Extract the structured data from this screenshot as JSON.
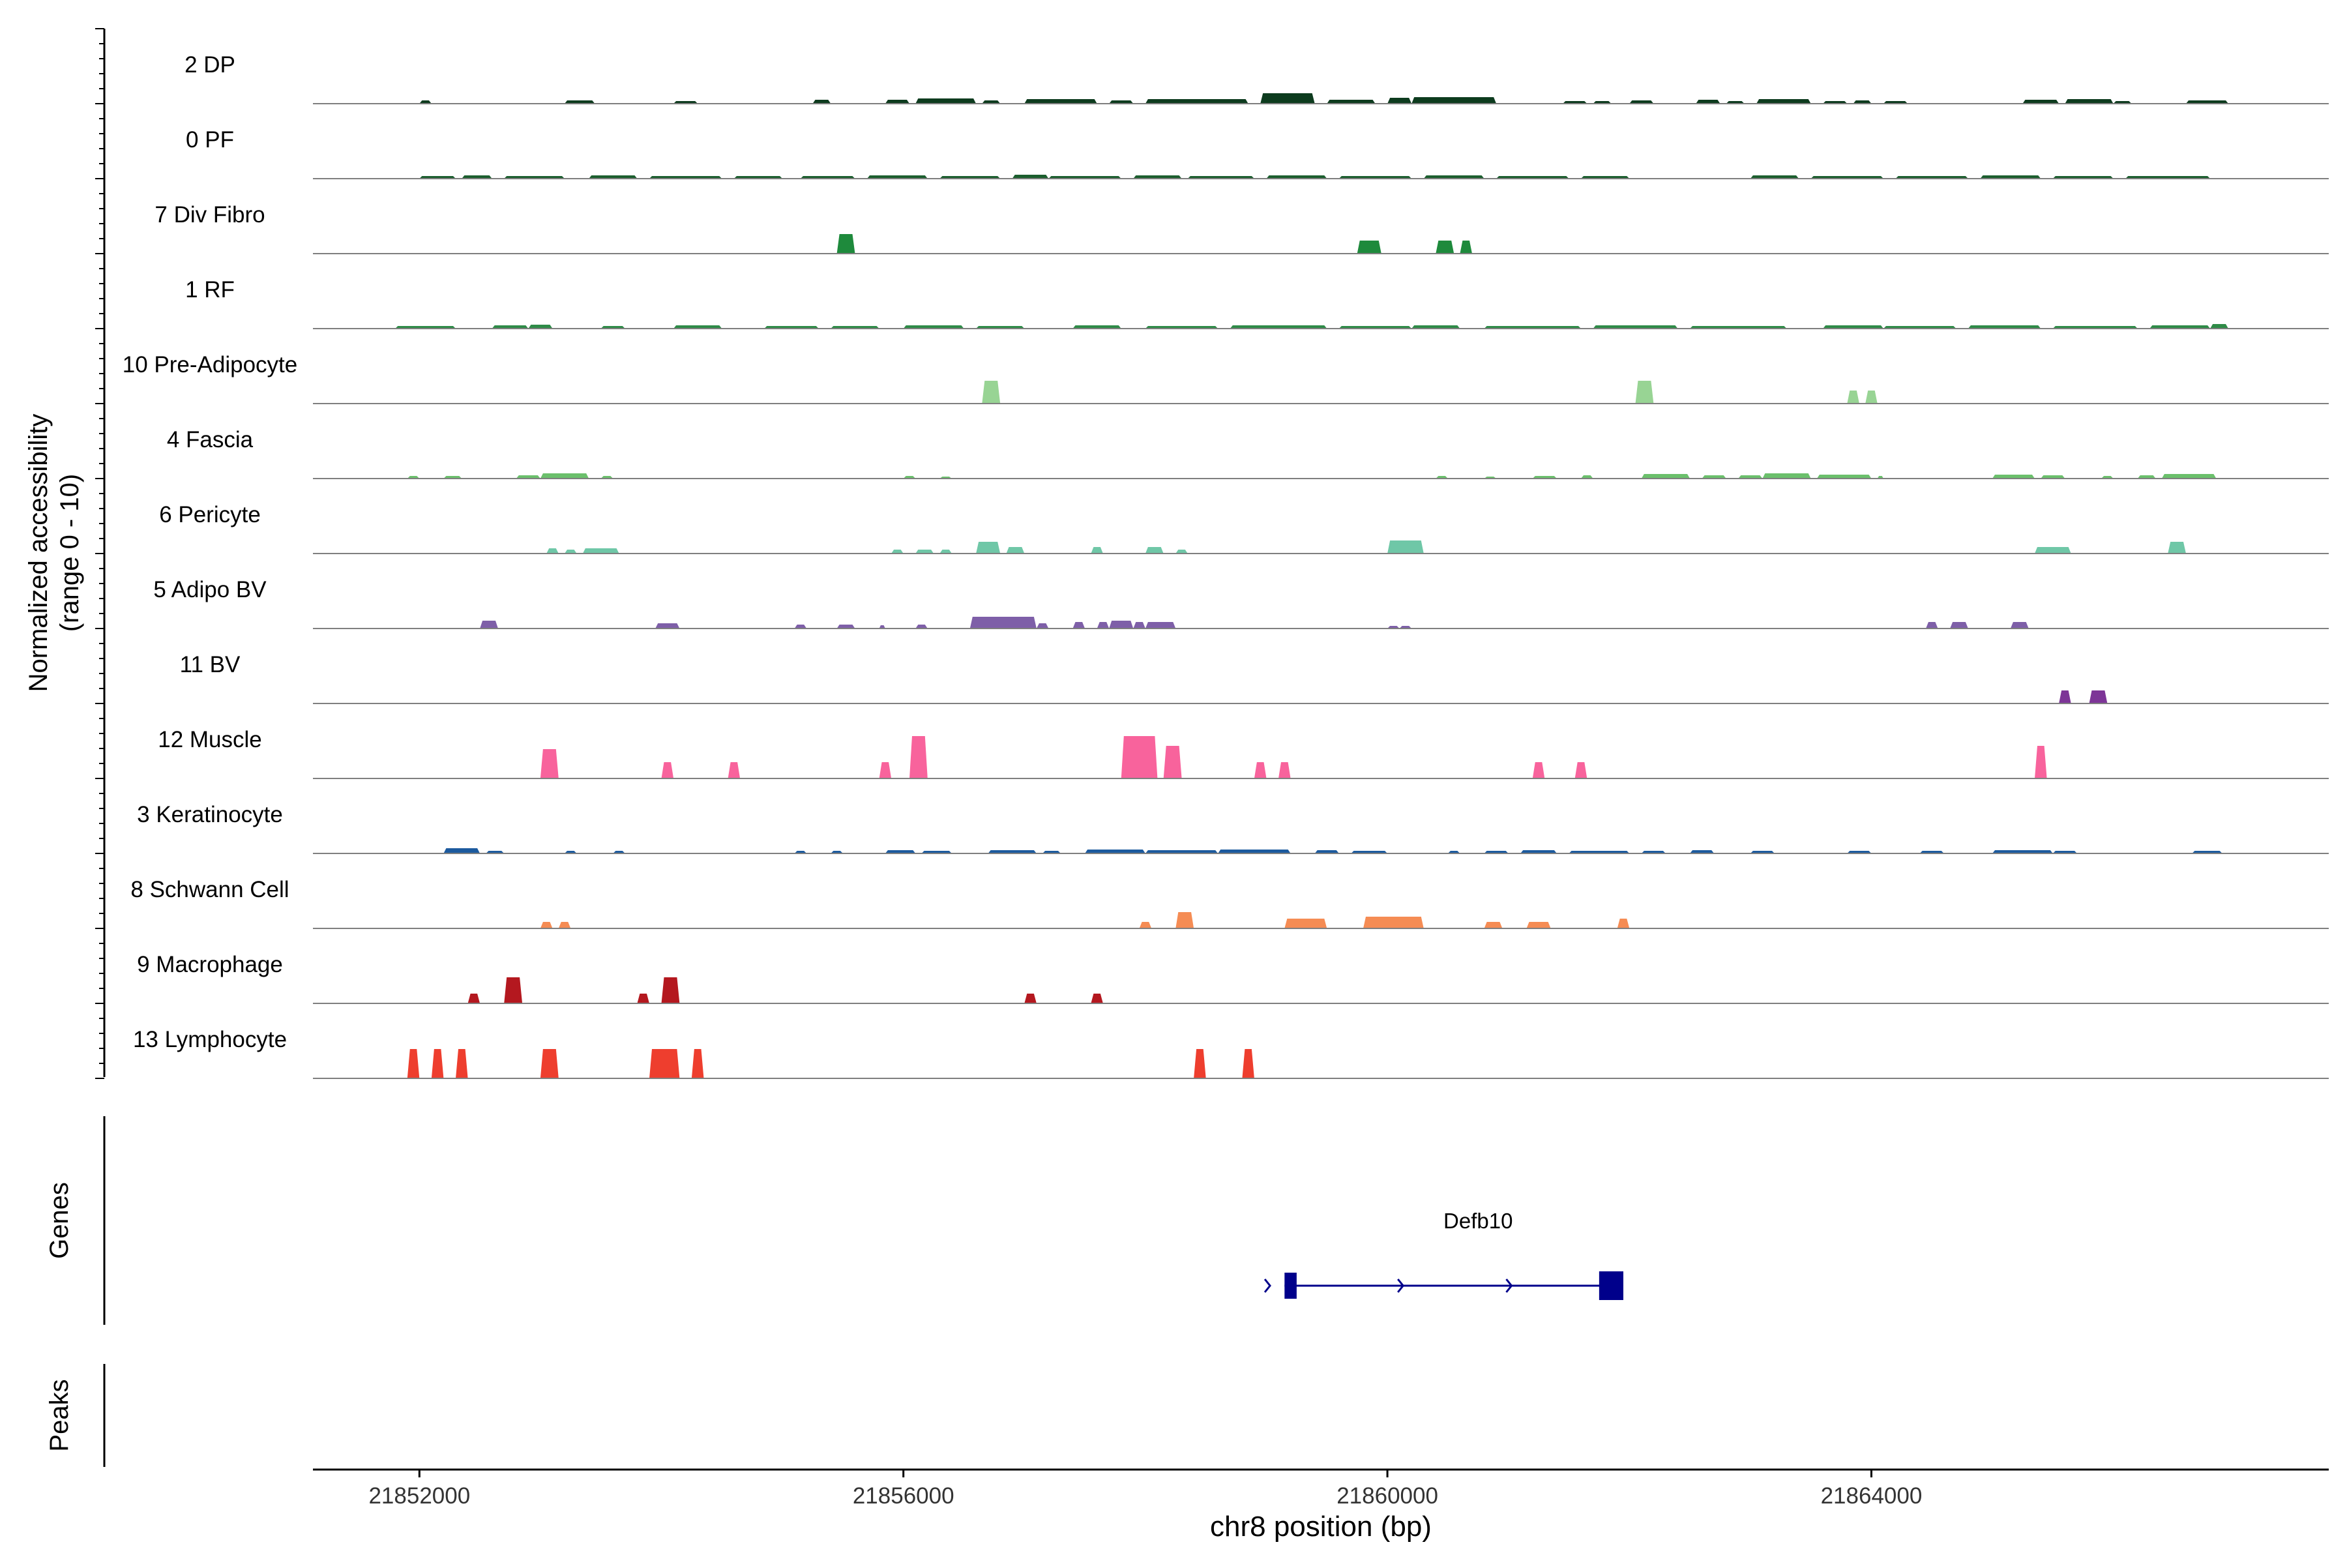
{
  "chart_data": {
    "type": "area",
    "title": "",
    "y_axis_label": "Normalized accessibility",
    "y_axis_sublabel": "(range 0 - 10)",
    "ylim": [
      0,
      10
    ],
    "genes_label": "Genes",
    "peaks_label": "Peaks",
    "xlabel": "chr8 position (bp)",
    "xlim": [
      21851120,
      21867780
    ],
    "xticks": [
      21852000,
      21856000,
      21860000,
      21864000
    ],
    "xtick_labels": [
      "21852000",
      "21856000",
      "21860000",
      "21864000"
    ],
    "gene": {
      "name": "Defb10",
      "start": 21859150,
      "end": 21861950,
      "strand": "+",
      "exons": [
        [
          21859150,
          21859250
        ],
        [
          21861750,
          21861950
        ]
      ],
      "color": "#00008b"
    },
    "tracks": [
      {
        "name": "2 DP",
        "color": "#0d3b1e",
        "segments": [
          [
            21852000,
            21852100,
            0.5
          ],
          [
            21853200,
            21853450,
            0.5
          ],
          [
            21854100,
            21854300,
            0.4
          ],
          [
            21855250,
            21855400,
            0.6
          ],
          [
            21855850,
            21856050,
            0.6
          ],
          [
            21856100,
            21856600,
            0.8
          ],
          [
            21856650,
            21856800,
            0.5
          ],
          [
            21857000,
            21857600,
            0.7
          ],
          [
            21857700,
            21857900,
            0.5
          ],
          [
            21858000,
            21858850,
            0.7
          ],
          [
            21858950,
            21859400,
            1.6
          ],
          [
            21859500,
            21859900,
            0.6
          ],
          [
            21860000,
            21860200,
            0.9
          ],
          [
            21860200,
            21860900,
            1.0
          ],
          [
            21861450,
            21861650,
            0.4
          ],
          [
            21861700,
            21861850,
            0.4
          ],
          [
            21862000,
            21862200,
            0.5
          ],
          [
            21862550,
            21862750,
            0.6
          ],
          [
            21862800,
            21862950,
            0.4
          ],
          [
            21863050,
            21863500,
            0.7
          ],
          [
            21863600,
            21863800,
            0.4
          ],
          [
            21863850,
            21864000,
            0.5
          ],
          [
            21864100,
            21864300,
            0.4
          ],
          [
            21865250,
            21865550,
            0.6
          ],
          [
            21865600,
            21866000,
            0.7
          ],
          [
            21866000,
            21866150,
            0.4
          ],
          [
            21866600,
            21866950,
            0.5
          ]
        ]
      },
      {
        "name": "0 PF",
        "color": "#1b5e2e",
        "segments": [
          [
            21852000,
            21852300,
            0.4
          ],
          [
            21852350,
            21852600,
            0.5
          ],
          [
            21852700,
            21853200,
            0.4
          ],
          [
            21853400,
            21853800,
            0.5
          ],
          [
            21853900,
            21854500,
            0.4
          ],
          [
            21854600,
            21855000,
            0.4
          ],
          [
            21855150,
            21855600,
            0.4
          ],
          [
            21855700,
            21856200,
            0.5
          ],
          [
            21856300,
            21856800,
            0.4
          ],
          [
            21856900,
            21857200,
            0.6
          ],
          [
            21857200,
            21857800,
            0.4
          ],
          [
            21857900,
            21858300,
            0.5
          ],
          [
            21858350,
            21858900,
            0.4
          ],
          [
            21859000,
            21859500,
            0.5
          ],
          [
            21859600,
            21860200,
            0.4
          ],
          [
            21860300,
            21860800,
            0.5
          ],
          [
            21860900,
            21861500,
            0.4
          ],
          [
            21861600,
            21862000,
            0.4
          ],
          [
            21863000,
            21863400,
            0.5
          ],
          [
            21863500,
            21864100,
            0.4
          ],
          [
            21864200,
            21864800,
            0.4
          ],
          [
            21864900,
            21865400,
            0.5
          ],
          [
            21865500,
            21866000,
            0.4
          ],
          [
            21866100,
            21866800,
            0.4
          ]
        ]
      },
      {
        "name": "7 Div Fibro",
        "color": "#1e8a3c",
        "segments": [
          [
            21855450,
            21855600,
            3.0
          ],
          [
            21859750,
            21859950,
            2.0
          ],
          [
            21860400,
            21860550,
            2.0
          ],
          [
            21860600,
            21860700,
            2.0
          ]
        ]
      },
      {
        "name": "1 RF",
        "color": "#2e8b47",
        "segments": [
          [
            21851800,
            21852300,
            0.4
          ],
          [
            21852600,
            21852900,
            0.5
          ],
          [
            21852900,
            21853100,
            0.6
          ],
          [
            21853500,
            21853700,
            0.4
          ],
          [
            21854100,
            21854500,
            0.5
          ],
          [
            21854850,
            21855300,
            0.4
          ],
          [
            21855400,
            21855800,
            0.4
          ],
          [
            21856000,
            21856500,
            0.5
          ],
          [
            21856600,
            21857000,
            0.4
          ],
          [
            21857400,
            21857800,
            0.5
          ],
          [
            21858000,
            21858600,
            0.4
          ],
          [
            21858700,
            21859500,
            0.5
          ],
          [
            21859600,
            21860200,
            0.4
          ],
          [
            21860200,
            21860600,
            0.5
          ],
          [
            21860800,
            21861600,
            0.4
          ],
          [
            21861700,
            21862400,
            0.5
          ],
          [
            21862500,
            21863300,
            0.4
          ],
          [
            21863600,
            21864100,
            0.5
          ],
          [
            21864100,
            21864700,
            0.4
          ],
          [
            21864800,
            21865400,
            0.5
          ],
          [
            21865500,
            21866200,
            0.4
          ],
          [
            21866300,
            21866800,
            0.5
          ],
          [
            21866800,
            21866950,
            0.7
          ]
        ]
      },
      {
        "name": "10 Pre-Adipocyte",
        "color": "#98d494",
        "segments": [
          [
            21856650,
            21856800,
            3.5
          ],
          [
            21862050,
            21862200,
            3.5
          ],
          [
            21863800,
            21863900,
            2.0
          ],
          [
            21863950,
            21864050,
            2.0
          ]
        ]
      },
      {
        "name": "4 Fascia",
        "color": "#6bc06c",
        "segments": [
          [
            21851900,
            21852000,
            0.4
          ],
          [
            21852200,
            21852350,
            0.4
          ],
          [
            21852800,
            21853000,
            0.5
          ],
          [
            21853000,
            21853400,
            0.8
          ],
          [
            21853500,
            21853600,
            0.4
          ],
          [
            21856000,
            21856100,
            0.4
          ],
          [
            21856300,
            21856400,
            0.3
          ],
          [
            21860400,
            21860500,
            0.4
          ],
          [
            21860800,
            21860900,
            0.3
          ],
          [
            21861200,
            21861400,
            0.4
          ],
          [
            21861600,
            21861700,
            0.5
          ],
          [
            21862100,
            21862500,
            0.7
          ],
          [
            21862600,
            21862800,
            0.5
          ],
          [
            21862900,
            21863100,
            0.5
          ],
          [
            21863100,
            21863500,
            0.8
          ],
          [
            21863550,
            21864000,
            0.6
          ],
          [
            21864050,
            21864100,
            0.4
          ],
          [
            21865000,
            21865350,
            0.6
          ],
          [
            21865400,
            21865600,
            0.5
          ],
          [
            21865900,
            21866000,
            0.4
          ],
          [
            21866200,
            21866350,
            0.5
          ],
          [
            21866400,
            21866850,
            0.7
          ]
        ]
      },
      {
        "name": "6 Pericyte",
        "color": "#6fc7a7",
        "segments": [
          [
            21853050,
            21853150,
            0.8
          ],
          [
            21853200,
            21853300,
            0.6
          ],
          [
            21853350,
            21853650,
            0.8
          ],
          [
            21855900,
            21856000,
            0.6
          ],
          [
            21856100,
            21856250,
            0.6
          ],
          [
            21856300,
            21856400,
            0.6
          ],
          [
            21856600,
            21856800,
            1.8
          ],
          [
            21856850,
            21857000,
            1.0
          ],
          [
            21857550,
            21857650,
            1.0
          ],
          [
            21858000,
            21858150,
            1.0
          ],
          [
            21858250,
            21858350,
            0.6
          ],
          [
            21860000,
            21860300,
            2.0
          ],
          [
            21865350,
            21865650,
            1.0
          ],
          [
            21866450,
            21866600,
            1.8
          ]
        ]
      },
      {
        "name": "5 Adipo BV",
        "color": "#7e5fa8",
        "segments": [
          [
            21852500,
            21852650,
            1.2
          ],
          [
            21853950,
            21854150,
            0.8
          ],
          [
            21855100,
            21855200,
            0.6
          ],
          [
            21855450,
            21855600,
            0.6
          ],
          [
            21855800,
            21855850,
            0.5
          ],
          [
            21856100,
            21856200,
            0.6
          ],
          [
            21856550,
            21857100,
            1.8
          ],
          [
            21857100,
            21857200,
            0.8
          ],
          [
            21857400,
            21857500,
            1.0
          ],
          [
            21857600,
            21857700,
            1.0
          ],
          [
            21857700,
            21857900,
            1.2
          ],
          [
            21857900,
            21858000,
            1.0
          ],
          [
            21858000,
            21858250,
            1.0
          ],
          [
            21860000,
            21860100,
            0.4
          ],
          [
            21860100,
            21860200,
            0.4
          ],
          [
            21864450,
            21864550,
            1.0
          ],
          [
            21864650,
            21864800,
            1.0
          ],
          [
            21865150,
            21865300,
            1.0
          ]
        ]
      },
      {
        "name": "11 BV",
        "color": "#7d3597",
        "segments": [
          [
            21865550,
            21865650,
            2.0
          ],
          [
            21865800,
            21865950,
            2.0
          ]
        ]
      },
      {
        "name": "12 Muscle",
        "color": "#f8639c",
        "segments": [
          [
            21853000,
            21853150,
            4.5
          ],
          [
            21854000,
            21854100,
            2.5
          ],
          [
            21854550,
            21854650,
            2.5
          ],
          [
            21855800,
            21855900,
            2.5
          ],
          [
            21856050,
            21856200,
            6.5
          ],
          [
            21857800,
            21858100,
            6.5
          ],
          [
            21858150,
            21858300,
            5.0
          ],
          [
            21858900,
            21859000,
            2.5
          ],
          [
            21859100,
            21859200,
            2.5
          ],
          [
            21861200,
            21861300,
            2.5
          ],
          [
            21861550,
            21861650,
            2.5
          ],
          [
            21865350,
            21865450,
            5.0
          ]
        ]
      },
      {
        "name": "3 Keratinocyte",
        "color": "#1c5a9e",
        "segments": [
          [
            21852200,
            21852500,
            0.8
          ],
          [
            21852550,
            21852700,
            0.4
          ],
          [
            21853200,
            21853300,
            0.4
          ],
          [
            21853600,
            21853700,
            0.4
          ],
          [
            21855100,
            21855200,
            0.4
          ],
          [
            21855400,
            21855500,
            0.4
          ],
          [
            21855850,
            21856100,
            0.5
          ],
          [
            21856150,
            21856400,
            0.4
          ],
          [
            21856700,
            21857100,
            0.5
          ],
          [
            21857150,
            21857300,
            0.4
          ],
          [
            21857500,
            21858000,
            0.6
          ],
          [
            21858000,
            21858600,
            0.5
          ],
          [
            21858600,
            21859200,
            0.6
          ],
          [
            21859400,
            21859600,
            0.5
          ],
          [
            21859700,
            21860000,
            0.4
          ],
          [
            21860500,
            21860600,
            0.4
          ],
          [
            21860800,
            21861000,
            0.4
          ],
          [
            21861100,
            21861400,
            0.5
          ],
          [
            21861500,
            21862000,
            0.4
          ],
          [
            21862100,
            21862300,
            0.4
          ],
          [
            21862500,
            21862700,
            0.5
          ],
          [
            21863000,
            21863200,
            0.4
          ],
          [
            21863800,
            21864000,
            0.4
          ],
          [
            21864400,
            21864600,
            0.4
          ],
          [
            21865000,
            21865500,
            0.5
          ],
          [
            21865500,
            21865700,
            0.4
          ],
          [
            21866650,
            21866900,
            0.4
          ]
        ]
      },
      {
        "name": "8 Schwann Cell",
        "color": "#f58c54",
        "segments": [
          [
            21853000,
            21853100,
            1.0
          ],
          [
            21853150,
            21853250,
            1.0
          ],
          [
            21857950,
            21858050,
            1.0
          ],
          [
            21858250,
            21858400,
            2.5
          ],
          [
            21859150,
            21859500,
            1.5
          ],
          [
            21859800,
            21860300,
            1.8
          ],
          [
            21860800,
            21860950,
            1.0
          ],
          [
            21861150,
            21861350,
            1.0
          ],
          [
            21861900,
            21862000,
            1.5
          ]
        ]
      },
      {
        "name": "9 Macrophage",
        "color": "#b4181f",
        "segments": [
          [
            21852400,
            21852500,
            1.5
          ],
          [
            21852700,
            21852850,
            4.0
          ],
          [
            21853800,
            21853900,
            1.5
          ],
          [
            21854000,
            21854150,
            4.0
          ],
          [
            21857000,
            21857100,
            1.5
          ],
          [
            21857550,
            21857650,
            1.5
          ]
        ]
      },
      {
        "name": "13 Lymphocyte",
        "color": "#ee3e2e",
        "segments": [
          [
            21851900,
            21852000,
            4.5
          ],
          [
            21852100,
            21852200,
            4.5
          ],
          [
            21852300,
            21852400,
            4.5
          ],
          [
            21853000,
            21853150,
            4.5
          ],
          [
            21853900,
            21854150,
            4.5
          ],
          [
            21854250,
            21854350,
            4.5
          ],
          [
            21858400,
            21858500,
            4.5
          ],
          [
            21858800,
            21858900,
            4.5
          ]
        ]
      }
    ]
  }
}
